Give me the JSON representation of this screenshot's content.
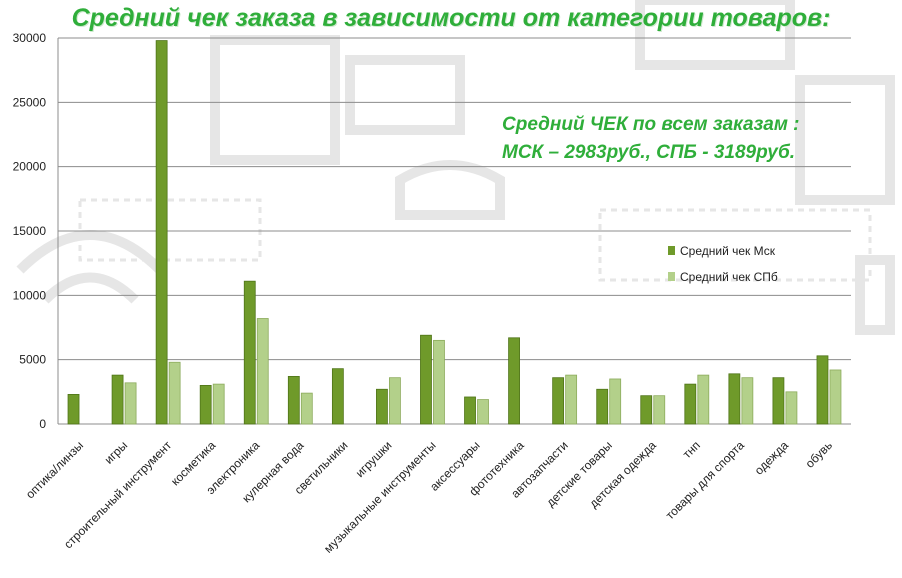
{
  "chart_data": {
    "type": "bar",
    "title": "Средний чек заказа в зависимости от категории товаров:",
    "annotation": [
      "Средний ЧЕК по всем заказам :",
      "МСК – 2983руб., СПБ - 3189руб."
    ],
    "xlabel": "",
    "ylabel": "",
    "ylim": [
      0,
      30000
    ],
    "yticks": [
      0,
      5000,
      10000,
      15000,
      20000,
      25000,
      30000
    ],
    "grid": true,
    "legend_position": "right",
    "categories": [
      "оптика/линзы",
      "игры",
      "строительный инструмент",
      "косметика",
      "электроника",
      "кулерная вода",
      "светильники",
      "игрушки",
      "музыкальные инструменты",
      "аксессуары",
      "фототехника",
      "автозапчасти",
      "детские товары",
      "детская одежда",
      "тнп",
      "товары для спорта",
      "одежда",
      "обувь"
    ],
    "series": [
      {
        "name": "Средний чек Мск",
        "color": "#6f9a2a",
        "values": [
          2300,
          3800,
          29800,
          3000,
          11100,
          3700,
          4300,
          2700,
          6900,
          2100,
          6700,
          3600,
          2700,
          2200,
          3100,
          3900,
          3600,
          5300
        ]
      },
      {
        "name": "Средний чек СПб",
        "color": "#b3d08a",
        "values": [
          null,
          3200,
          4800,
          3100,
          8200,
          2400,
          null,
          3600,
          6500,
          1900,
          null,
          3800,
          3500,
          2200,
          3800,
          3600,
          2500,
          4200
        ]
      }
    ]
  }
}
